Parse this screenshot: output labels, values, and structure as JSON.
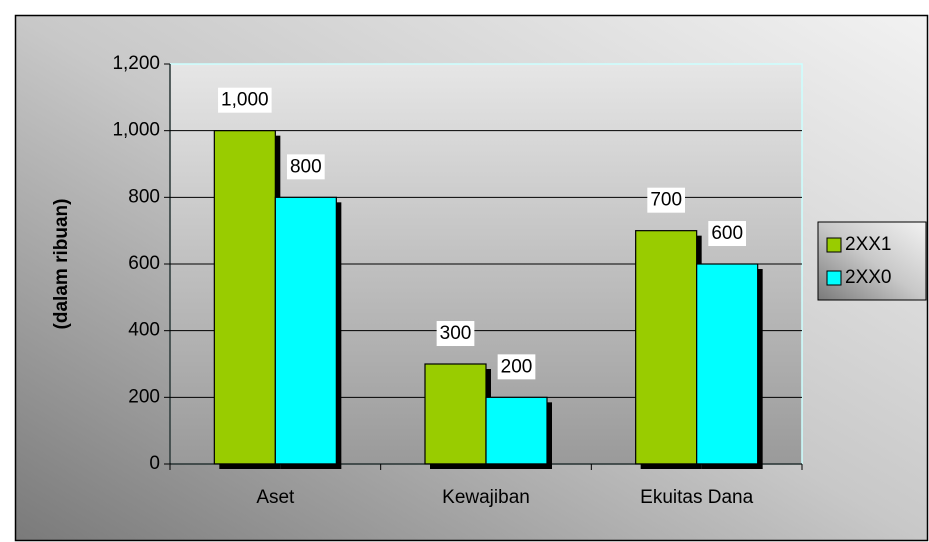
{
  "chart_data": {
    "type": "bar",
    "y_label": "(dalam ribuan)",
    "categories": [
      "Aset",
      "Kewajiban",
      "Ekuitas Dana"
    ],
    "series": [
      {
        "name": "2XX1",
        "color": "#99cc00",
        "values": [
          1000,
          300,
          700
        ],
        "value_labels": [
          "1,000",
          "300",
          "700"
        ]
      },
      {
        "name": "2XX0",
        "color": "#00ffff",
        "values": [
          800,
          200,
          600
        ]
      }
    ],
    "ylim": [
      0,
      1200
    ],
    "yticks": [
      0,
      200,
      400,
      600,
      800,
      {
        "value": 1000,
        "label": "1,000"
      },
      {
        "value": 1200,
        "label": "1,200"
      }
    ],
    "grid": true,
    "legend": "right"
  }
}
